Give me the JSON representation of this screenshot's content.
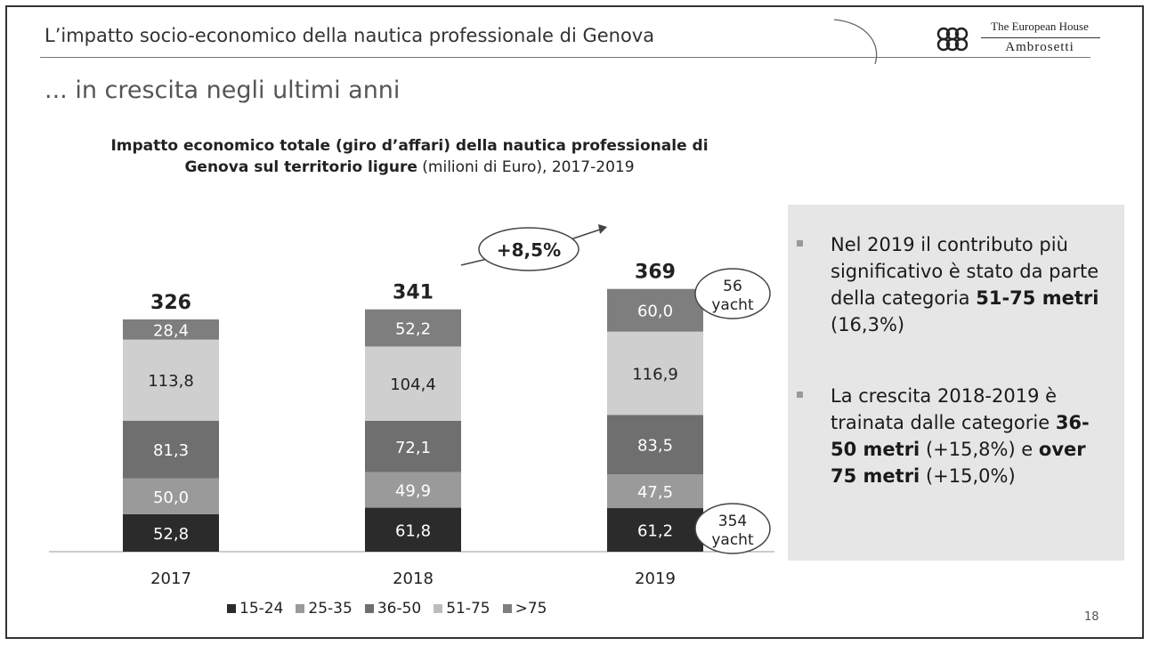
{
  "header": {
    "title": "L’impatto socio-economico della nautica professionale di Genova",
    "logo_line1": "The European House",
    "logo_line2": "Ambrosetti"
  },
  "subtitle": "... in crescita negli ultimi anni",
  "chart_title": {
    "bold_part1": "Impatto economico totale (giro d’affari) della nautica professionale di",
    "bold_part2": "Genova sul territorio ligure",
    "normal_part2": " (milioni di Euro), 2017-2019"
  },
  "chart_data": {
    "type": "bar",
    "stacked": true,
    "categories": [
      "2017",
      "2018",
      "2019"
    ],
    "series": [
      {
        "name": "15-24",
        "values": [
          52.8,
          61.8,
          61.2
        ],
        "labels": [
          "52,8",
          "61,8",
          "61,2"
        ],
        "color": "#2b2b2b",
        "text_color": "#ffffff"
      },
      {
        "name": "25-35",
        "values": [
          50.0,
          49.9,
          47.5
        ],
        "labels": [
          "50,0",
          "49,9",
          "47,5"
        ],
        "color": "#9a9a9a",
        "text_color": "#ffffff"
      },
      {
        "name": "36-50",
        "values": [
          81.3,
          72.1,
          83.5
        ],
        "labels": [
          "81,3",
          "72,1",
          "83,5"
        ],
        "color": "#6f6f6f",
        "text_color": "#ffffff"
      },
      {
        "name": "51-75",
        "values": [
          113.8,
          104.4,
          116.9
        ],
        "labels": [
          "113,8",
          "104,4",
          "116,9"
        ],
        "color": "#cfcfcf",
        "text_color": "#222222"
      },
      {
        "name": ">75",
        "values": [
          28.4,
          52.2,
          60.0
        ],
        "labels": [
          "28,4",
          "52,2",
          "60,0"
        ],
        "color": "#7e7e7e",
        "text_color": "#ffffff"
      }
    ],
    "totals": [
      "326",
      "341",
      "369"
    ],
    "growth_label": "+8,5%",
    "annotations": [
      {
        "line1": "56",
        "line2": "yacht"
      },
      {
        "line1": "354",
        "line2": "yacht"
      }
    ],
    "legend_position": "bottom",
    "grid": false
  },
  "bullets": [
    {
      "pre": "Nel 2019 il contributo più significativo è stato da parte della categoria ",
      "bold": "51-75 metri",
      "post": " (16,3%)"
    },
    {
      "pre": "La crescita 2018-2019 è trainata dalle categorie ",
      "bold": "36-50 metri",
      "mid": " (+15,8%) e ",
      "bold2": "over 75 metri",
      "post": " (+15,0%)"
    }
  ],
  "page_number": "18"
}
